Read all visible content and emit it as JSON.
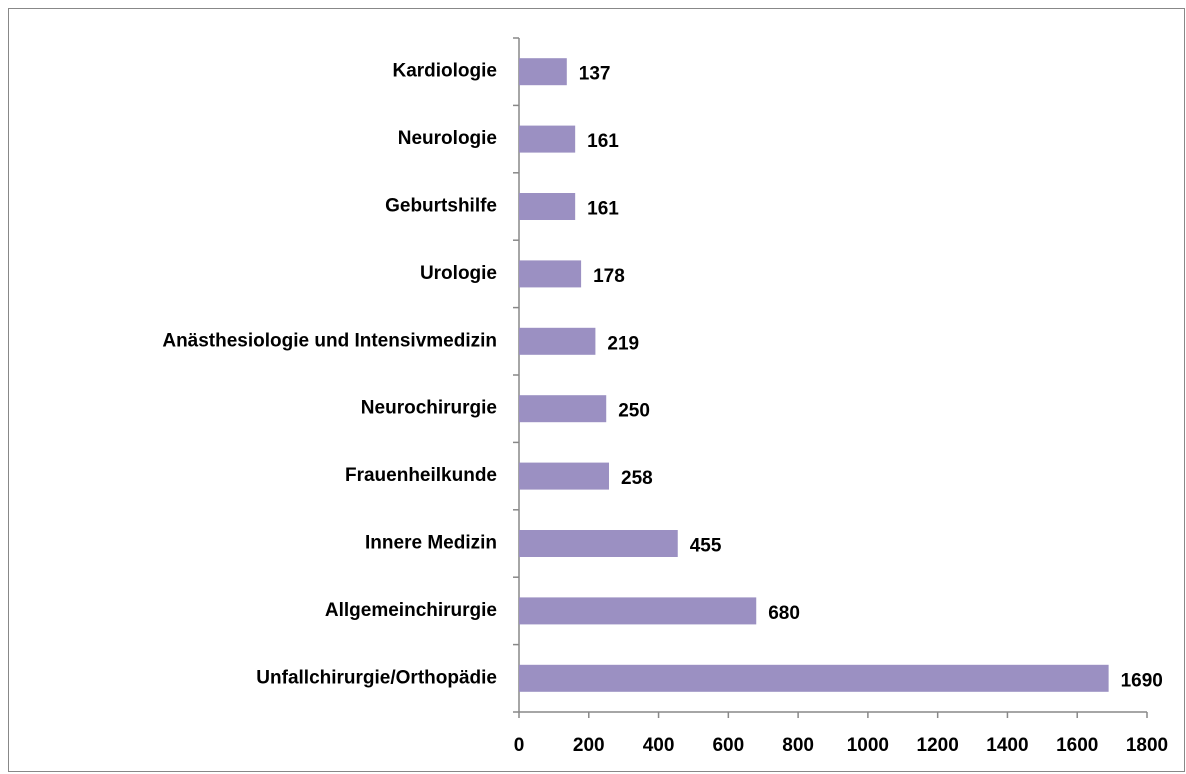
{
  "chart_data": {
    "type": "hbar",
    "categories": [
      "Kardiologie",
      "Neurologie",
      "Geburtshilfe",
      "Urologie",
      "Anästhesiologie und Intensivmedizin",
      "Neurochirurgie",
      "Frauenheilkunde",
      "Innere Medizin",
      "Allgemeinchirurgie",
      "Unfallchirurgie/Orthopädie"
    ],
    "values": [
      137,
      161,
      161,
      178,
      219,
      250,
      258,
      455,
      680,
      1690
    ],
    "color": "#9b90c2",
    "xlim": [
      0,
      1800
    ],
    "xticks": [
      0,
      200,
      400,
      600,
      800,
      1000,
      1200,
      1400,
      1600,
      1800
    ],
    "grid": false
  }
}
